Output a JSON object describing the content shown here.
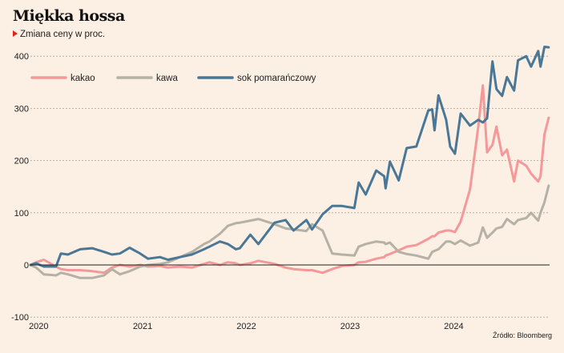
{
  "chart_data": {
    "type": "line",
    "title": "Miękka hossa",
    "subtitle": "Zmiana ceny w proc.",
    "source": "Źródło: Bloomberg",
    "xlabel": "",
    "ylabel": "",
    "ylim": [
      -100,
      400
    ],
    "xlim": [
      "2020-01-01",
      "2024-12-31"
    ],
    "yticks": [
      -100,
      0,
      100,
      200,
      300,
      400
    ],
    "xticks": [
      "2020",
      "2021",
      "2022",
      "2023",
      "2024"
    ],
    "grid": true,
    "legend_placement": "top-left",
    "dates": [
      "2020-01-01",
      "2020-01-21",
      "2020-02-17",
      "2020-03-31",
      "2020-04-17",
      "2020-05-12",
      "2020-06-24",
      "2020-08-05",
      "2020-09-16",
      "2020-10-14",
      "2020-11-11",
      "2020-12-15",
      "2021-01-21",
      "2021-02-18",
      "2021-04-01",
      "2021-04-29",
      "2021-06-10",
      "2021-07-22",
      "2021-09-03",
      "2021-09-22",
      "2021-10-29",
      "2021-11-26",
      "2021-12-24",
      "2022-01-07",
      "2022-02-13",
      "2022-03-13",
      "2022-05-09",
      "2022-06-17",
      "2022-07-15",
      "2022-08-29",
      "2022-09-18",
      "2022-10-25",
      "2022-11-28",
      "2023-01-01",
      "2023-02-14",
      "2023-03-01",
      "2023-03-26",
      "2023-05-02",
      "2023-05-30",
      "2023-06-04",
      "2023-06-19",
      "2023-07-20",
      "2023-08-17",
      "2023-09-20",
      "2023-11-01",
      "2023-11-15",
      "2023-11-23",
      "2023-12-07",
      "2024-01-03",
      "2024-01-17",
      "2024-02-03",
      "2024-02-23",
      "2024-03-27",
      "2024-04-25",
      "2024-05-11",
      "2024-05-26",
      "2024-06-14",
      "2024-06-28",
      "2024-07-18",
      "2024-08-04",
      "2024-08-29",
      "2024-09-12",
      "2024-10-11",
      "2024-10-28",
      "2024-11-22",
      "2024-11-30",
      "2024-12-14",
      "2024-12-29"
    ],
    "series": [
      {
        "name": "kakao",
        "color": "#f4989a",
        "values": [
          0,
          5,
          10,
          -3,
          -8,
          -10,
          -10,
          -12,
          -15,
          -5,
          0,
          -3,
          0,
          -3,
          -2,
          -5,
          -3,
          -5,
          2,
          5,
          0,
          5,
          3,
          0,
          3,
          8,
          2,
          -5,
          -8,
          -10,
          -10,
          -15,
          -8,
          -2,
          0,
          5,
          6,
          12,
          15,
          18,
          21,
          28,
          35,
          38,
          50,
          55,
          55,
          62,
          66,
          66,
          63,
          83,
          145,
          265,
          344,
          216,
          230,
          265,
          210,
          221,
          160,
          200,
          190,
          175,
          160,
          170,
          250,
          282
        ]
      },
      {
        "name": "kawa",
        "color": "#b5b1a6",
        "values": [
          0,
          -5,
          -18,
          -20,
          -15,
          -18,
          -25,
          -25,
          -20,
          -8,
          -18,
          -12,
          -3,
          0,
          2,
          5,
          15,
          25,
          40,
          45,
          60,
          75,
          80,
          81,
          85,
          88,
          78,
          70,
          68,
          65,
          78,
          66,
          22,
          20,
          18,
          35,
          40,
          45,
          43,
          40,
          43,
          25,
          21,
          18,
          12,
          25,
          27,
          30,
          45,
          45,
          40,
          47,
          37,
          43,
          72,
          52,
          62,
          70,
          73,
          88,
          78,
          86,
          90,
          100,
          85,
          100,
          120,
          152
        ]
      },
      {
        "name": "sok pomarańczowy",
        "color": "#4a7796",
        "values": [
          0,
          3,
          -3,
          -3,
          22,
          20,
          30,
          32,
          25,
          20,
          22,
          33,
          22,
          12,
          15,
          10,
          15,
          20,
          30,
          35,
          45,
          40,
          30,
          32,
          58,
          40,
          81,
          86,
          66,
          86,
          68,
          97,
          113,
          113,
          109,
          158,
          135,
          181,
          170,
          147,
          198,
          162,
          224,
          227,
          296,
          298,
          258,
          325,
          278,
          227,
          213,
          290,
          267,
          278,
          273,
          281,
          390,
          337,
          324,
          360,
          334,
          392,
          400,
          380,
          410,
          380,
          418,
          417
        ]
      }
    ]
  }
}
